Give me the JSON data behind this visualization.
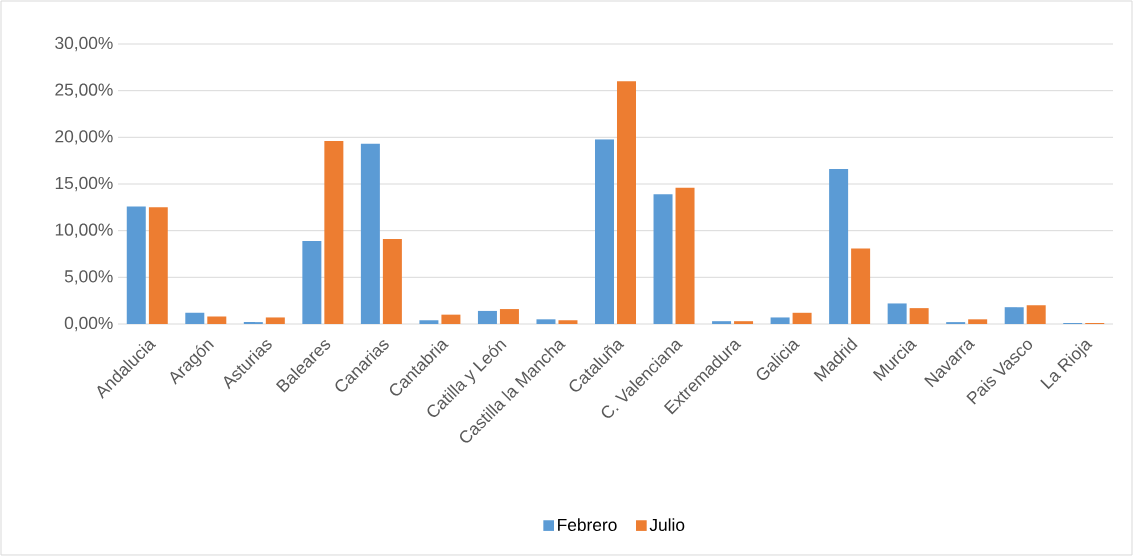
{
  "chart_data": {
    "type": "bar",
    "categories": [
      "Andalucia",
      "Aragón",
      "Asturias",
      "Baleares",
      "Canarias",
      "Cantabria",
      "Catilla y León",
      "Castilla la Mancha",
      "Cataluña",
      "C. Valenciana",
      "Extremadura",
      "Galicia",
      "Madrid",
      "Murcia",
      "Navarra",
      "Pais Vasco",
      "La Rioja"
    ],
    "series": [
      {
        "name": "Febrero",
        "color": "#5b9bd5",
        "values": [
          12.6,
          1.2,
          0.2,
          8.9,
          19.3,
          0.4,
          1.4,
          0.5,
          19.8,
          13.9,
          0.3,
          0.7,
          16.6,
          2.2,
          0.2,
          1.8,
          0.1
        ]
      },
      {
        "name": "Julio",
        "color": "#ed7d31",
        "values": [
          12.5,
          0.8,
          0.7,
          19.6,
          9.1,
          1.0,
          1.6,
          0.4,
          26.0,
          14.6,
          0.3,
          1.2,
          8.1,
          1.7,
          0.5,
          2.0,
          0.1
        ]
      }
    ],
    "ylim": [
      0,
      30
    ],
    "yticks": [
      {
        "value": 0,
        "label": "0,00%"
      },
      {
        "value": 5,
        "label": "5,00%"
      },
      {
        "value": 10,
        "label": "10,00%"
      },
      {
        "value": 15,
        "label": "15,00%"
      },
      {
        "value": 20,
        "label": "20,00%"
      },
      {
        "value": 25,
        "label": "25,00%"
      },
      {
        "value": 30,
        "label": "30,00%"
      }
    ],
    "grid": "y",
    "legend": "bottom"
  }
}
